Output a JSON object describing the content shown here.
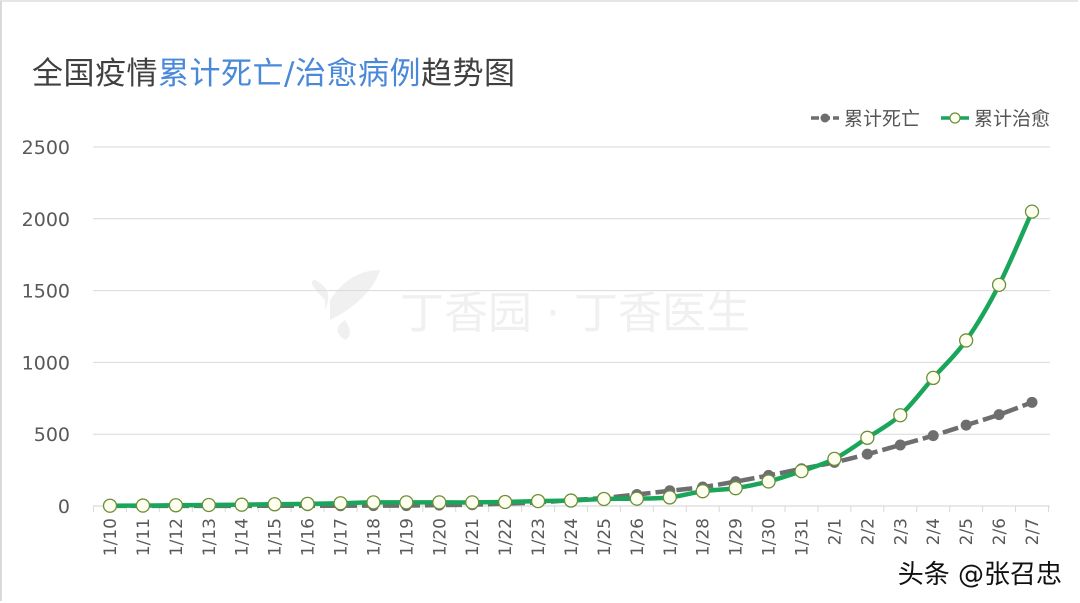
{
  "title": {
    "part1": "全国疫情",
    "highlight": "累计死亡/治愈病例",
    "part2": "趋势图"
  },
  "legend": [
    {
      "label": "累计死亡",
      "color": "#6e6e6e",
      "marker": "filled-circle"
    },
    {
      "label": "累计治愈",
      "color": "#1aa65a",
      "marker": "hollow-circle"
    }
  ],
  "watermark_bg": "丁香园 · 丁香医生",
  "footer_watermark": "头条 @张召忠",
  "colors": {
    "highlight": "#4a88d9",
    "death": "#6e6e6e",
    "recovered": "#1aa65a",
    "grid": "#d9d9d9"
  },
  "chart_data": {
    "type": "line",
    "title": "全国疫情累计死亡/治愈病例趋势图",
    "xlabel": "",
    "ylabel": "",
    "ylim": [
      0,
      2500
    ],
    "yticks": [
      0,
      500,
      1000,
      1500,
      2000,
      2500
    ],
    "grid": true,
    "legend_position": "top-right",
    "categories": [
      "1/10",
      "1/11",
      "1/12",
      "1/13",
      "1/14",
      "1/15",
      "1/16",
      "1/17",
      "1/18",
      "1/19",
      "1/20",
      "1/21",
      "1/22",
      "1/23",
      "1/24",
      "1/25",
      "1/26",
      "1/27",
      "1/28",
      "1/29",
      "1/30",
      "1/31",
      "2/1",
      "2/2",
      "2/3",
      "2/4",
      "2/5",
      "2/6",
      "2/7"
    ],
    "series": [
      {
        "name": "累计死亡",
        "values": [
          1,
          1,
          1,
          1,
          1,
          2,
          2,
          2,
          3,
          3,
          6,
          9,
          17,
          25,
          41,
          56,
          80,
          106,
          132,
          170,
          213,
          259,
          304,
          361,
          425,
          490,
          563,
          636,
          722
        ]
      },
      {
        "name": "累计治愈",
        "values": [
          2,
          3,
          5,
          7,
          9,
          12,
          15,
          19,
          25,
          25,
          25,
          25,
          28,
          34,
          38,
          49,
          51,
          60,
          103,
          124,
          171,
          243,
          328,
          475,
          632,
          892,
          1153,
          1540,
          2050
        ]
      }
    ]
  }
}
